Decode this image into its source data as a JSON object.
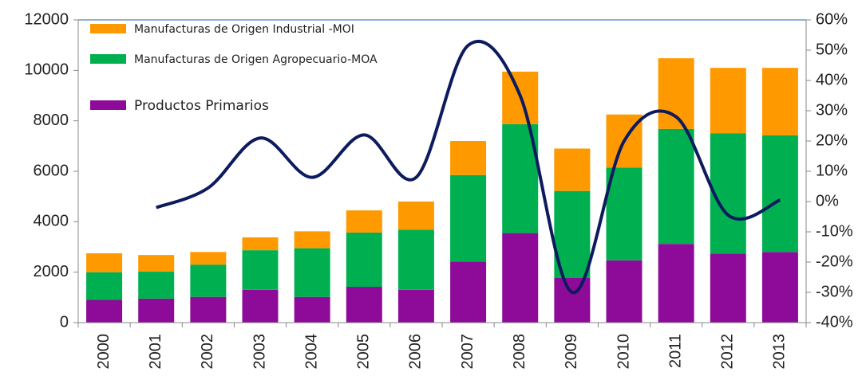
{
  "chart_data": {
    "type": "stacked-bar-line",
    "categories": [
      "2000",
      "2001",
      "2002",
      "2003",
      "2004",
      "2005",
      "2006",
      "2007",
      "2008",
      "2009",
      "2010",
      "2011",
      "2012",
      "2013"
    ],
    "series": [
      {
        "name": "Productos Primarios",
        "color": "#8e0b9a",
        "values": [
          900,
          950,
          1020,
          1300,
          1020,
          1420,
          1300,
          2420,
          3550,
          1780,
          2470,
          3120,
          2730,
          2800
        ]
      },
      {
        "name": "Manufacturas de Origen Agropecuario-MOA",
        "color": "#00b050",
        "values": [
          1100,
          1070,
          1280,
          1570,
          1930,
          2150,
          2380,
          3430,
          4320,
          3440,
          3680,
          4560,
          4770,
          4620
        ]
      },
      {
        "name": "Manufacturas de Origen Industrial -MOI",
        "color": "#ff9900",
        "values": [
          750,
          660,
          500,
          510,
          670,
          880,
          1120,
          1350,
          2080,
          1680,
          2100,
          2800,
          2600,
          2680
        ]
      },
      {
        "type": "line",
        "axis": "y2",
        "color": "#0d1b5e",
        "values": [
          null,
          -2,
          4.5,
          21,
          8,
          22,
          8,
          51.6,
          35,
          -30,
          20,
          28,
          -4.5,
          0.5
        ]
      }
    ],
    "ylim": [
      0,
      12000
    ],
    "yticks": [
      0,
      2000,
      4000,
      6000,
      8000,
      10000,
      12000
    ],
    "y2lim": [
      -40,
      60
    ],
    "y2ticks": [
      {
        "value": -40,
        "label": "-40%"
      },
      {
        "value": -30,
        "label": "-30%"
      },
      {
        "value": -20,
        "label": "-20%"
      },
      {
        "value": -10,
        "label": "-10%"
      },
      {
        "value": 0,
        "label": "0%"
      },
      {
        "value": 10,
        "label": "10%"
      },
      {
        "value": 20,
        "label": "20%"
      },
      {
        "value": 30,
        "label": "30%"
      },
      {
        "value": 40,
        "label": "40%"
      },
      {
        "value": 50,
        "label": "50%"
      },
      {
        "value": 60,
        "label": "60%"
      }
    ]
  }
}
